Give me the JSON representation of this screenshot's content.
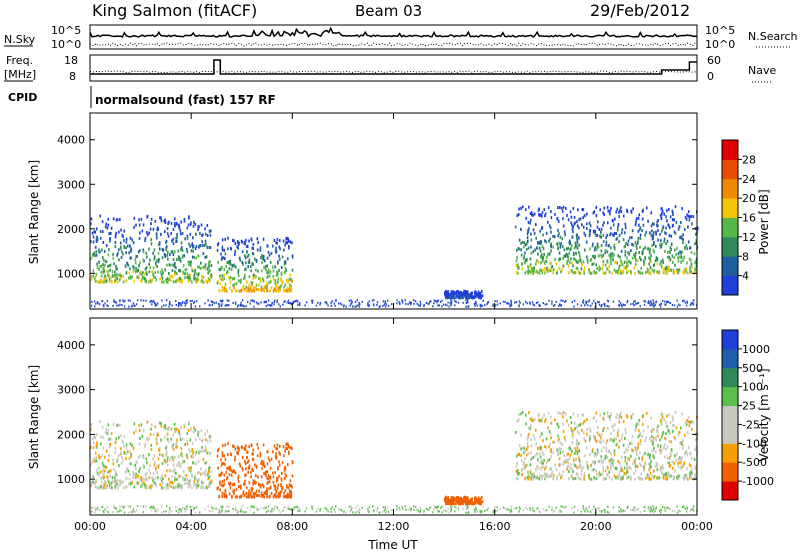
{
  "header": {
    "station": "King Salmon (fitACF)",
    "beam": "Beam 03",
    "date": "29/Feb/2012"
  },
  "noise_panel": {
    "left_label": "N.Sky",
    "right_label": "N.Search",
    "tick_top": "10^5",
    "tick_bottom": "10^0"
  },
  "freq_panel": {
    "left_label_1": "Freq.",
    "left_label_2": "[MHz]",
    "left_ticks": [
      "18",
      "8"
    ],
    "right_ticks": [
      "60",
      "0"
    ],
    "right_label": "Nave"
  },
  "cpid": {
    "label": "CPID",
    "program": "normalsound (fast) 157 RF"
  },
  "colors": {
    "power_scale": [
      "#1f3fd6",
      "#1e5fa0",
      "#2e8b57",
      "#57b84a",
      "#f2c500",
      "#f08a00",
      "#e94d00",
      "#e00000"
    ],
    "velocity_scale": [
      "#e00000",
      "#f06000",
      "#f5a000",
      "#c9c9c0",
      "#c9c9c0",
      "#5bc04a",
      "#2e8b57",
      "#1f5fb0",
      "#1f3fd6"
    ]
  },
  "chart_data": [
    {
      "type": "heatmap",
      "title": "Power",
      "ylabel": "Slant Range [km]",
      "ylim": [
        200,
        4600
      ],
      "yticks": [
        "4000",
        "3000",
        "2000",
        "1000"
      ],
      "xlim": [
        "00:00",
        "24:00"
      ],
      "colorbar": {
        "label": "Power [dB]",
        "ticks": [
          "28",
          "24",
          "20",
          "16",
          "12",
          "8",
          "4"
        ],
        "range": [
          0,
          32
        ]
      },
      "regions": [
        {
          "x_start_h": 0.0,
          "x_end_h": 4.8,
          "range_low_km": 800,
          "range_high_km": 2300,
          "peak_db": 20
        },
        {
          "x_start_h": 5.0,
          "x_end_h": 8.0,
          "range_low_km": 600,
          "range_high_km": 1800,
          "peak_db": 24
        },
        {
          "x_start_h": 14.0,
          "x_end_h": 15.5,
          "range_low_km": 450,
          "range_high_km": 600,
          "peak_db": 8
        },
        {
          "x_start_h": 16.8,
          "x_end_h": 24.0,
          "range_low_km": 1000,
          "range_high_km": 2500,
          "peak_db": 20
        }
      ]
    },
    {
      "type": "heatmap",
      "title": "Velocity",
      "xlabel": "Time UT",
      "ylabel": "Slant Range [km]",
      "ylim": [
        200,
        4600
      ],
      "yticks": [
        "4000",
        "3000",
        "2000",
        "1000"
      ],
      "xticks": [
        "00:00",
        "04:00",
        "08:00",
        "12:00",
        "16:00",
        "20:00",
        "00:00"
      ],
      "colorbar": {
        "label": "Velocity [m s⁻¹]",
        "ticks": [
          "1000",
          "500",
          "100",
          "25",
          "-25",
          "-100",
          "-500",
          "-1000"
        ]
      },
      "regions": [
        {
          "x_start_h": 0.0,
          "x_end_h": 4.8,
          "range_low_km": 800,
          "range_high_km": 2300,
          "velocity": 0
        },
        {
          "x_start_h": 5.0,
          "x_end_h": 8.0,
          "range_low_km": 600,
          "range_high_km": 1800,
          "velocity": -200
        },
        {
          "x_start_h": 14.0,
          "x_end_h": 15.5,
          "range_low_km": 450,
          "range_high_km": 600,
          "velocity": -150
        },
        {
          "x_start_h": 16.8,
          "x_end_h": 24.0,
          "range_low_km": 900,
          "range_high_km": 2500,
          "velocity": 0
        }
      ]
    }
  ]
}
